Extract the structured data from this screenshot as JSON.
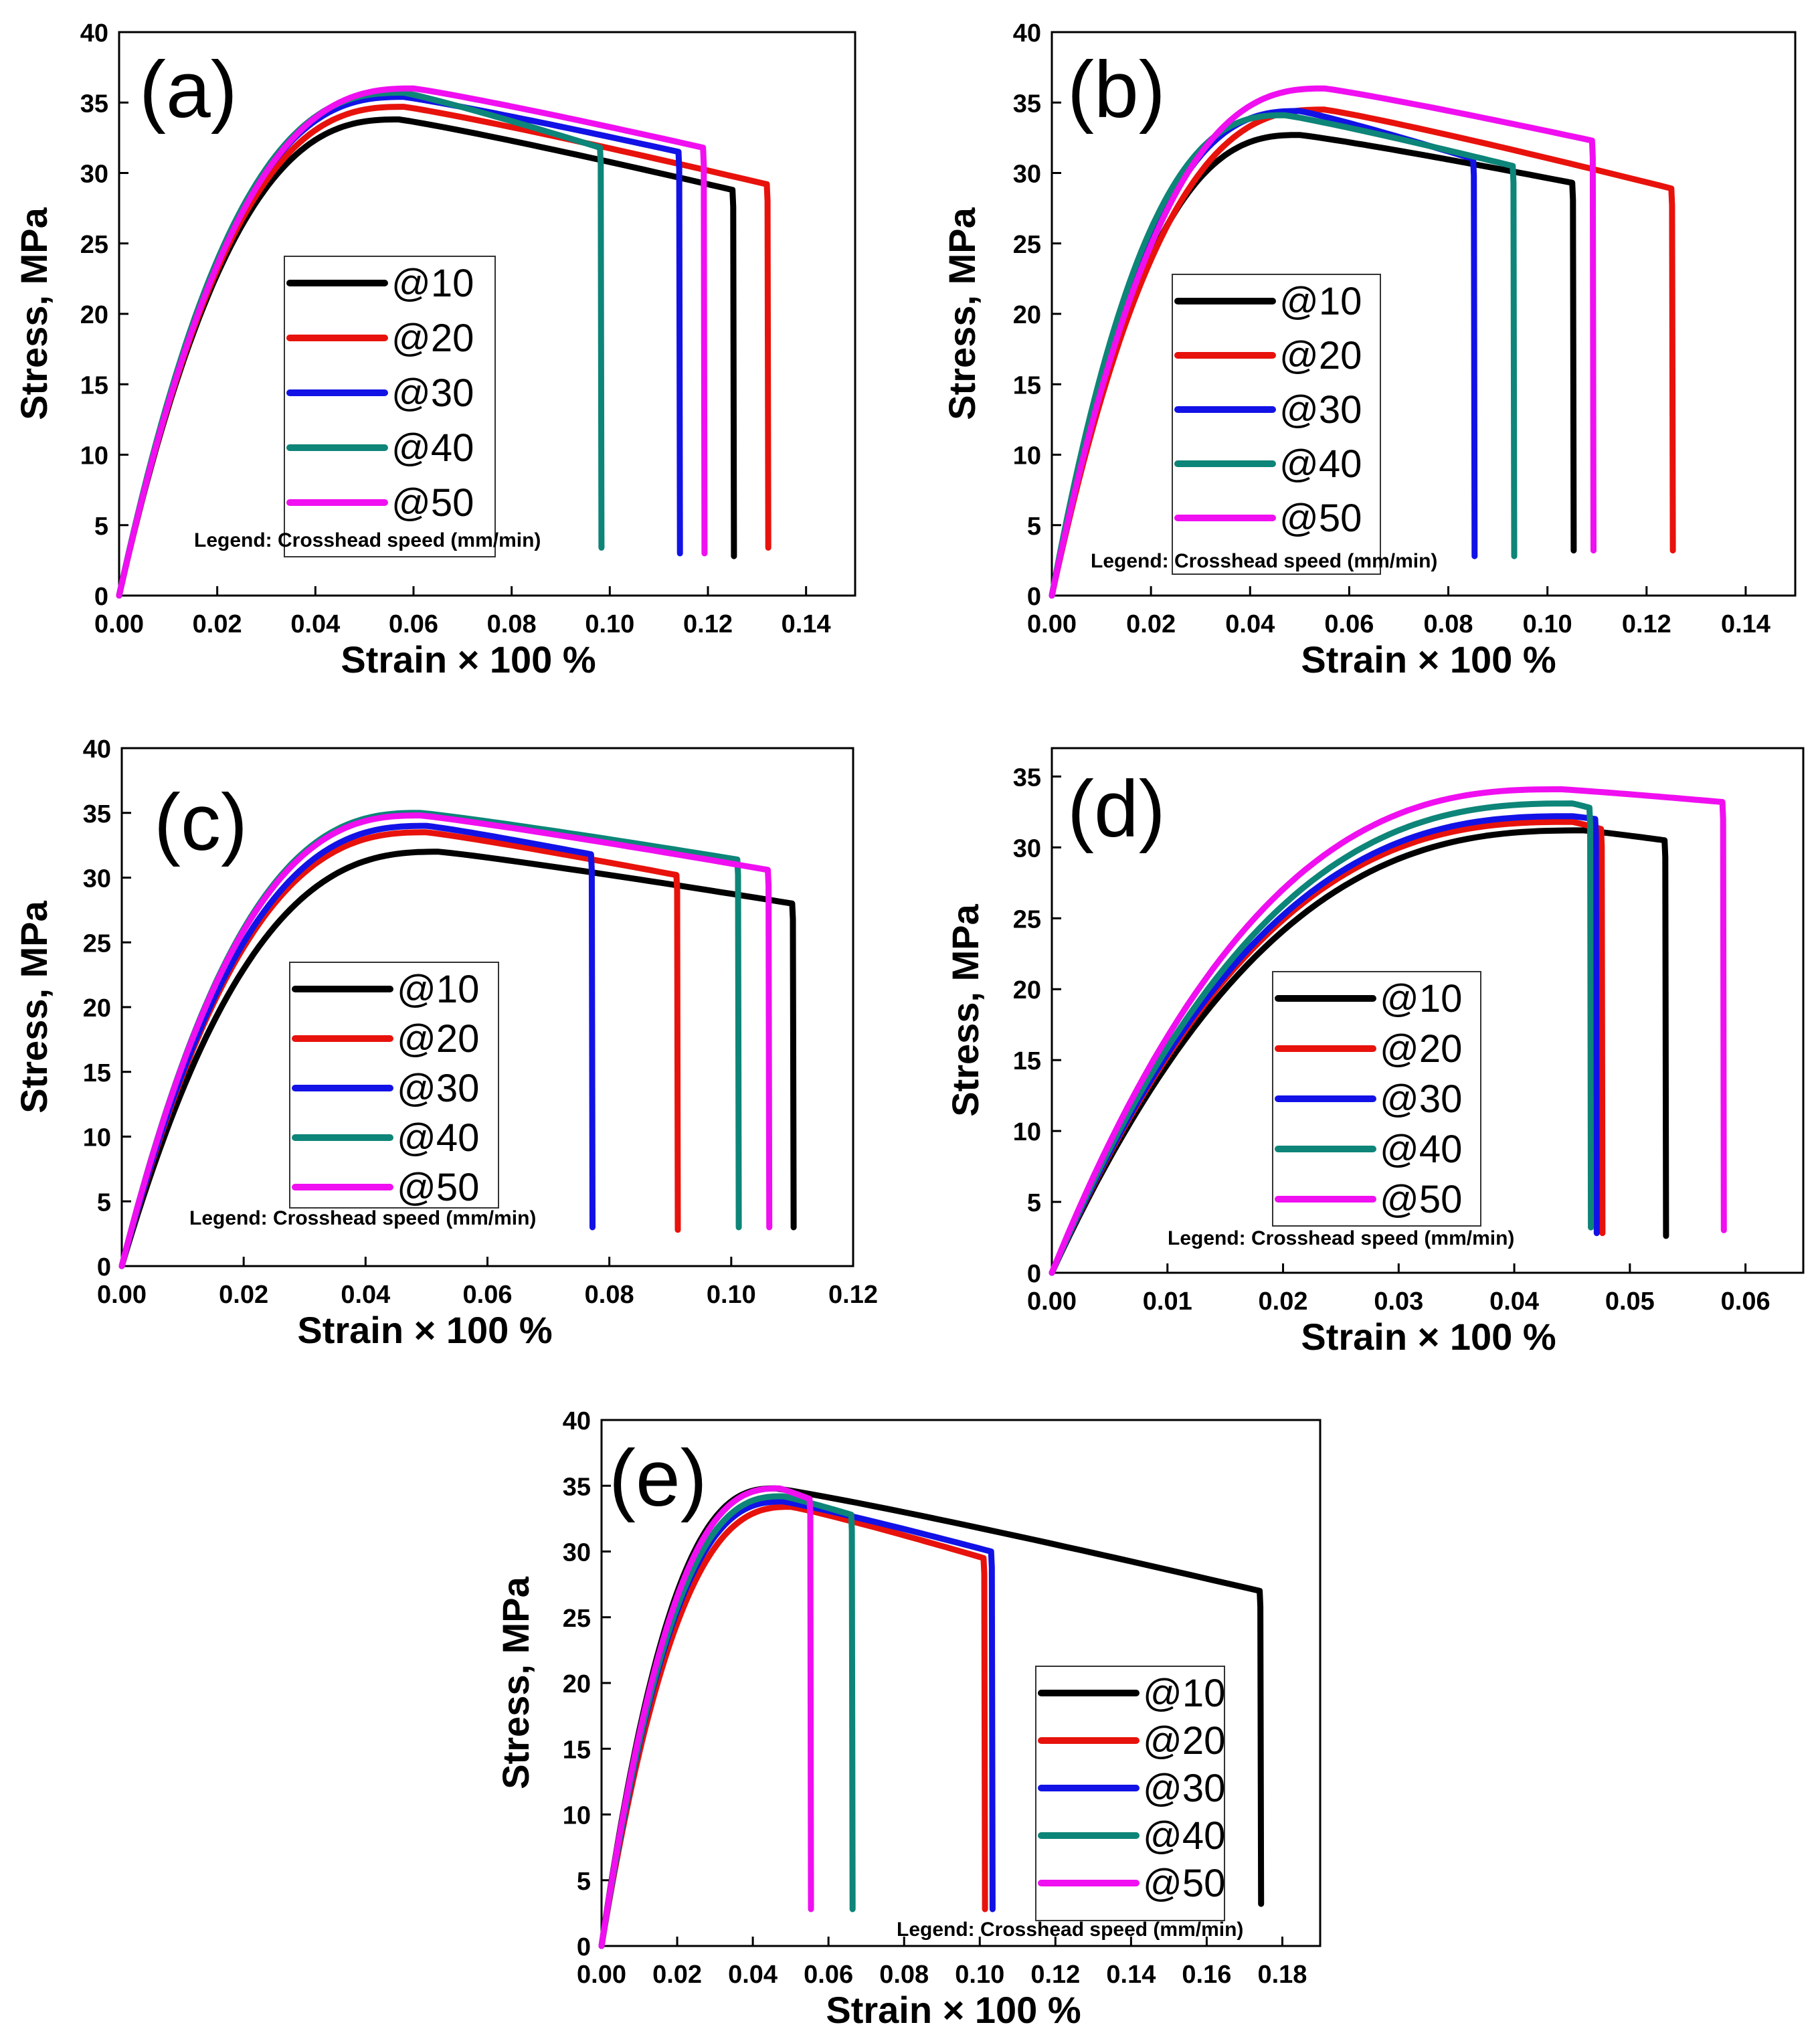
{
  "figure_type": "multi-panel stress-strain curves",
  "series_colors": {
    "@10": "#000000",
    "@20": "#e8120c",
    "@30": "#1212e6",
    "@40": "#0d8578",
    "@50": "#f00ff0"
  },
  "chart_data": [
    {
      "type": "line",
      "panel": "(a)",
      "xlabel": "Strain × 100 %",
      "ylabel": "Stress, MPa",
      "xlim": [
        0,
        0.15
      ],
      "ylim": [
        0,
        40
      ],
      "xticks": [
        "0.00",
        "0.02",
        "0.04",
        "0.06",
        "0.08",
        "0.10",
        "0.12",
        "0.14"
      ],
      "yticks": [
        "0",
        "5",
        "10",
        "15",
        "20",
        "25",
        "30",
        "35",
        "40"
      ],
      "legend_note": "Legend: Crosshead speed (mm/min)",
      "series": [
        {
          "name": "@10",
          "peak_strain": 0.057,
          "peak_stress": 33.8,
          "end_strain": 0.125,
          "end_stress": 28.8,
          "fracture_stress": 2.8
        },
        {
          "name": "@20",
          "peak_strain": 0.058,
          "peak_stress": 34.7,
          "end_strain": 0.132,
          "end_stress": 29.2,
          "fracture_stress": 3.4
        },
        {
          "name": "@30",
          "peak_strain": 0.058,
          "peak_stress": 35.4,
          "end_strain": 0.114,
          "end_stress": 31.5,
          "fracture_stress": 3.0
        },
        {
          "name": "@40",
          "peak_strain": 0.058,
          "peak_stress": 35.7,
          "end_strain": 0.098,
          "end_stress": 31.8,
          "fracture_stress": 3.4
        },
        {
          "name": "@50",
          "peak_strain": 0.06,
          "peak_stress": 36.0,
          "end_strain": 0.119,
          "end_stress": 31.8,
          "fracture_stress": 3.0
        }
      ]
    },
    {
      "type": "line",
      "panel": "(b)",
      "xlabel": "Strain × 100 %",
      "ylabel": "Stress, MPa",
      "xlim": [
        0,
        0.15
      ],
      "ylim": [
        0,
        40
      ],
      "xticks": [
        "0.00",
        "0.02",
        "0.04",
        "0.06",
        "0.08",
        "0.10",
        "0.12",
        "0.14"
      ],
      "yticks": [
        "0",
        "5",
        "10",
        "15",
        "20",
        "25",
        "30",
        "35",
        "40"
      ],
      "legend_note": "Legend: Crosshead speed (mm/min)",
      "series": [
        {
          "name": "@10",
          "peak_strain": 0.05,
          "peak_stress": 32.7,
          "end_strain": 0.105,
          "end_stress": 29.3,
          "fracture_stress": 3.2
        },
        {
          "name": "@20",
          "peak_strain": 0.055,
          "peak_stress": 34.5,
          "end_strain": 0.125,
          "end_stress": 28.9,
          "fracture_stress": 3.2
        },
        {
          "name": "@30",
          "peak_strain": 0.05,
          "peak_stress": 34.4,
          "end_strain": 0.085,
          "end_stress": 31.0,
          "fracture_stress": 2.8
        },
        {
          "name": "@40",
          "peak_strain": 0.047,
          "peak_stress": 34.1,
          "end_strain": 0.093,
          "end_stress": 30.5,
          "fracture_stress": 2.8
        },
        {
          "name": "@50",
          "peak_strain": 0.055,
          "peak_stress": 36.0,
          "end_strain": 0.109,
          "end_stress": 32.3,
          "fracture_stress": 3.2
        }
      ]
    },
    {
      "type": "line",
      "panel": "(c)",
      "xlabel": "Strain × 100 %",
      "ylabel": "Stress, MPa",
      "xlim": [
        0,
        0.12
      ],
      "ylim": [
        0,
        40
      ],
      "xticks": [
        "0.00",
        "0.02",
        "0.04",
        "0.06",
        "0.08",
        "0.10",
        "0.12"
      ],
      "yticks": [
        "0",
        "5",
        "10",
        "15",
        "20",
        "25",
        "30",
        "35",
        "40"
      ],
      "legend_note": "Legend: Crosshead speed (mm/min)",
      "series": [
        {
          "name": "@10",
          "peak_strain": 0.052,
          "peak_stress": 32.0,
          "end_strain": 0.11,
          "end_stress": 28.0,
          "fracture_stress": 3.0
        },
        {
          "name": "@20",
          "peak_strain": 0.05,
          "peak_stress": 33.5,
          "end_strain": 0.091,
          "end_stress": 30.2,
          "fracture_stress": 2.8
        },
        {
          "name": "@30",
          "peak_strain": 0.05,
          "peak_stress": 34.0,
          "end_strain": 0.077,
          "end_stress": 31.8,
          "fracture_stress": 3.0
        },
        {
          "name": "@40",
          "peak_strain": 0.049,
          "peak_stress": 35.0,
          "end_strain": 0.101,
          "end_stress": 31.4,
          "fracture_stress": 3.0
        },
        {
          "name": "@50",
          "peak_strain": 0.049,
          "peak_stress": 34.8,
          "end_strain": 0.106,
          "end_stress": 30.6,
          "fracture_stress": 3.0
        }
      ]
    },
    {
      "type": "line",
      "panel": "(d)",
      "xlabel": "Strain  × 100 %",
      "ylabel": "Stress, MPa",
      "xlim": [
        0,
        0.065
      ],
      "ylim": [
        0,
        37
      ],
      "xticks": [
        "0.00",
        "0.01",
        "0.02",
        "0.03",
        "0.04",
        "0.05",
        "0.06"
      ],
      "yticks": [
        "0",
        "5",
        "10",
        "15",
        "20",
        "25",
        "30",
        "35"
      ],
      "legend_note": "Legend: Crosshead speed (mm/min)",
      "series": [
        {
          "name": "@10",
          "peak_strain": 0.046,
          "peak_stress": 31.2,
          "end_strain": 0.053,
          "end_stress": 30.5,
          "fracture_stress": 2.6
        },
        {
          "name": "@20",
          "peak_strain": 0.045,
          "peak_stress": 31.8,
          "end_strain": 0.0475,
          "end_stress": 31.3,
          "fracture_stress": 2.8
        },
        {
          "name": "@30",
          "peak_strain": 0.045,
          "peak_stress": 32.2,
          "end_strain": 0.047,
          "end_stress": 32.0,
          "fracture_stress": 2.8
        },
        {
          "name": "@40",
          "peak_strain": 0.045,
          "peak_stress": 33.1,
          "end_strain": 0.0465,
          "end_stress": 32.8,
          "fracture_stress": 3.2
        },
        {
          "name": "@50",
          "peak_strain": 0.044,
          "peak_stress": 34.1,
          "end_strain": 0.058,
          "end_stress": 33.2,
          "fracture_stress": 3.0
        }
      ]
    },
    {
      "type": "line",
      "panel": "(e)",
      "xlabel": "Strain × 100 %",
      "ylabel": "Stress, MPa",
      "xlim": [
        0,
        0.19
      ],
      "ylim": [
        0,
        40
      ],
      "xticks": [
        "0.00",
        "0.02",
        "0.04",
        "0.06",
        "0.08",
        "0.10",
        "0.12",
        "0.14",
        "0.16",
        "0.18"
      ],
      "yticks": [
        "0",
        "5",
        "10",
        "15",
        "20",
        "25",
        "30",
        "35",
        "40"
      ],
      "legend_note": "Legend: Crosshead speed (mm/min)",
      "series": [
        {
          "name": "@10",
          "peak_strain": 0.046,
          "peak_stress": 34.8,
          "end_strain": 0.174,
          "end_stress": 27.0,
          "fracture_stress": 3.2
        },
        {
          "name": "@20",
          "peak_strain": 0.05,
          "peak_stress": 33.4,
          "end_strain": 0.101,
          "end_stress": 29.5,
          "fracture_stress": 2.8
        },
        {
          "name": "@30",
          "peak_strain": 0.048,
          "peak_stress": 33.8,
          "end_strain": 0.103,
          "end_stress": 30.0,
          "fracture_stress": 2.8
        },
        {
          "name": "@40",
          "peak_strain": 0.048,
          "peak_stress": 34.2,
          "end_strain": 0.066,
          "end_stress": 32.8,
          "fracture_stress": 2.8
        },
        {
          "name": "@50",
          "peak_strain": 0.047,
          "peak_stress": 34.8,
          "end_strain": 0.055,
          "end_stress": 34.0,
          "fracture_stress": 2.8
        }
      ]
    }
  ]
}
